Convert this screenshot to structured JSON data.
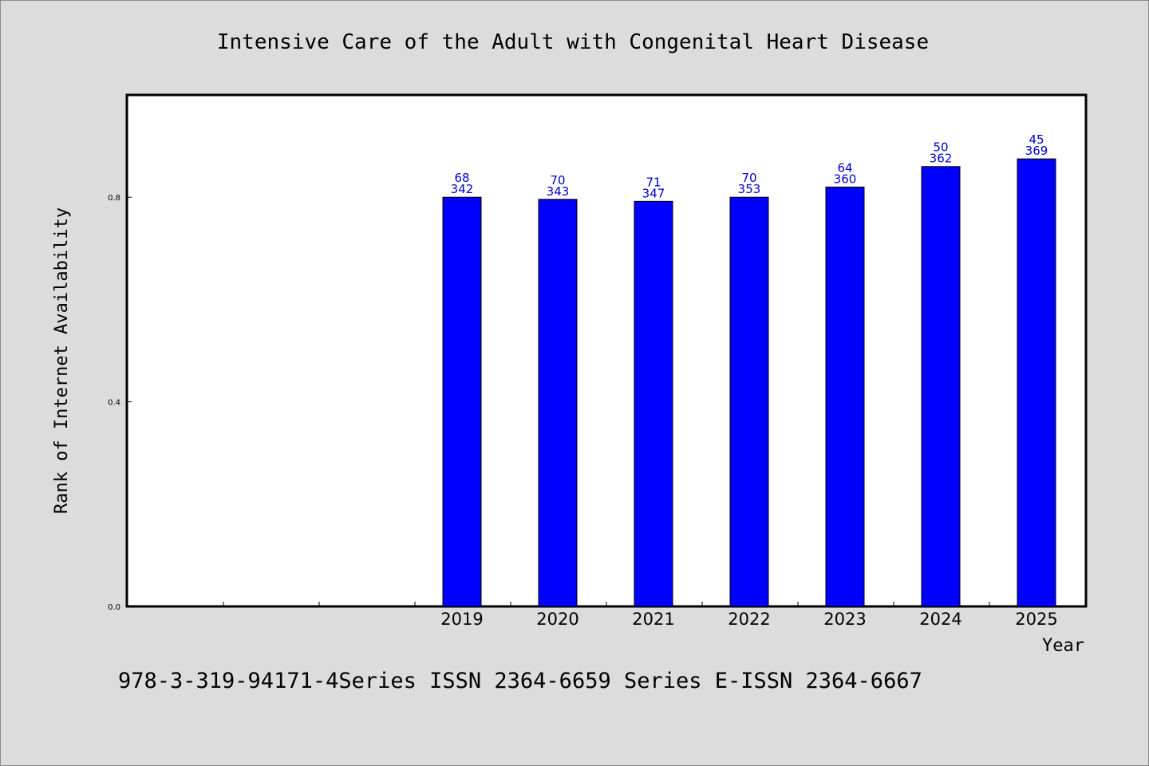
{
  "chart_data": {
    "type": "bar",
    "title": "Intensive Care of the Adult with Congenital Heart Disease",
    "xlabel": "Year",
    "ylabel": "Rank of Internet Availability",
    "ylim": [
      0,
      1.0
    ],
    "yticks": [
      "0.0",
      "0.4",
      "0.8"
    ],
    "ytick_values": [
      0.0,
      0.4,
      0.8
    ],
    "categories": [
      "2019",
      "2020",
      "2021",
      "2022",
      "2023",
      "2024",
      "2025"
    ],
    "values": [
      0.8,
      0.796,
      0.792,
      0.8,
      0.82,
      0.86,
      0.875
    ],
    "label_top": [
      "68",
      "70",
      "71",
      "70",
      "64",
      "50",
      "45"
    ],
    "label_bottom": [
      "342",
      "343",
      "347",
      "353",
      "360",
      "362",
      "369"
    ],
    "bar_color": "#0000ff",
    "label_color": "#0000cc",
    "grid": false,
    "footnote": "978-3-319-94171-4Series ISSN 2364-6659 Series E-ISSN 2364-6667"
  }
}
